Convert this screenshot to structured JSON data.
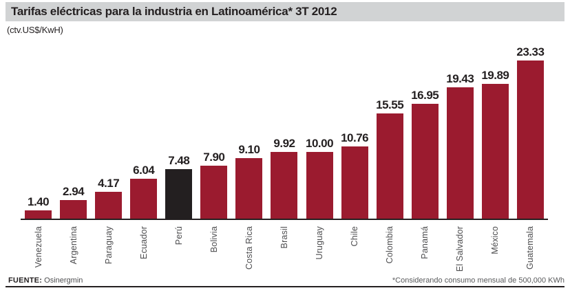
{
  "header": {
    "title": "Tarifas eléctricas para la industria en Latinoamérica* 3T 2012",
    "subtitle": "(ctv.US$/KwH)"
  },
  "chart_data": {
    "type": "bar",
    "title": "Tarifas eléctricas para la industria en Latinoamérica* 3T 2012",
    "ylabel": "ctv.US$/KwH",
    "xlabel": "",
    "categories": [
      "Venezuela",
      "Argentina",
      "Paraguay",
      "Ecuador",
      "Perú",
      "Bolivia",
      "Costa Rica",
      "Brasil",
      "Uruguay",
      "Chile",
      "Colombia",
      "Panamá",
      "El Salvador",
      "México",
      "Guatemala"
    ],
    "values": [
      1.4,
      2.94,
      4.17,
      6.04,
      7.48,
      7.9,
      9.1,
      9.92,
      10.0,
      10.76,
      15.55,
      16.95,
      19.43,
      19.89,
      23.33
    ],
    "highlight_index": 4,
    "highlight_category": "Perú",
    "bar_color": "#9b1b2f",
    "highlight_color": "#231f20",
    "ylim": [
      0,
      24
    ],
    "grid": false,
    "legend": false,
    "value_labels_shown": true,
    "x_tick_rotation": 90
  },
  "footer": {
    "source_label": "FUENTE:",
    "source_value": " Osinergmin",
    "footnote": "*Considerando consumo mensual de 500,000 KWh"
  },
  "colors": {
    "title_bar_bg": "#d1d3d4",
    "bar": "#9b1b2f",
    "highlight_bar": "#231f20",
    "axis": "#231f20",
    "text_dark": "#231f20",
    "text_gray": "#4d4d4f"
  }
}
